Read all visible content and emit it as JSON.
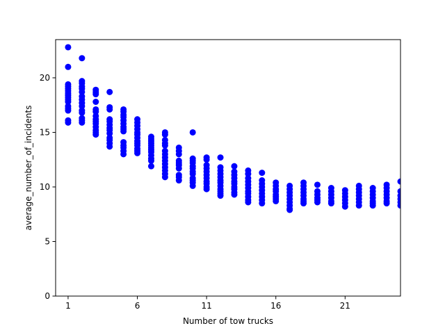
{
  "chart_data": {
    "type": "scatter",
    "title": "",
    "xlabel": "Number of tow trucks",
    "ylabel": "average_number_of_incidents",
    "xlim": [
      0.1,
      25
    ],
    "ylim": [
      0,
      23.5
    ],
    "xticks": [
      1,
      6,
      11,
      16,
      21
    ],
    "yticks": [
      0,
      5,
      10,
      15,
      20
    ],
    "grid": false,
    "marker_color": "#0000ff",
    "points_by_x": {
      "1": [
        22.8,
        21.0,
        19.4,
        19.2,
        19.0,
        18.8,
        18.6,
        18.4,
        18.2,
        18.0,
        17.8,
        17.4,
        17.2,
        17.0,
        16.1,
        15.9
      ],
      "2": [
        21.8,
        19.7,
        19.5,
        19.2,
        19.0,
        18.7,
        18.3,
        18.0,
        17.7,
        17.4,
        17.0,
        16.8,
        16.3,
        16.1,
        15.9
      ],
      "3": [
        18.9,
        18.7,
        18.5,
        17.8,
        17.1,
        16.9,
        16.5,
        16.2,
        16.0,
        15.8,
        15.5,
        15.2,
        15.0,
        14.8
      ],
      "4": [
        18.7,
        17.3,
        17.1,
        16.2,
        16.0,
        15.7,
        15.4,
        15.2,
        14.9,
        14.5,
        14.3,
        14.0,
        13.7
      ],
      "5": [
        17.1,
        16.9,
        16.6,
        16.4,
        16.1,
        15.8,
        15.5,
        15.3,
        15.1,
        14.1,
        13.8,
        13.6,
        13.3,
        13.0
      ],
      "6": [
        16.2,
        15.9,
        15.6,
        15.3,
        15.0,
        14.8,
        14.5,
        14.2,
        14.0,
        13.8,
        13.5,
        13.3,
        13.1
      ],
      "7": [
        14.6,
        14.4,
        14.2,
        14.0,
        13.8,
        13.6,
        13.4,
        13.2,
        12.9,
        12.6,
        12.4,
        11.9
      ],
      "8": [
        15.0,
        14.8,
        14.3,
        14.0,
        13.8,
        13.3,
        13.0,
        12.7,
        12.4,
        12.1,
        11.8,
        11.5,
        11.2,
        10.9
      ],
      "9": [
        13.6,
        13.3,
        13.0,
        12.4,
        12.2,
        12.0,
        11.7,
        11.1,
        10.9,
        10.6
      ],
      "10": [
        15.0,
        12.6,
        12.4,
        12.2,
        11.9,
        11.7,
        11.4,
        11.2,
        10.8,
        10.6,
        10.4,
        10.1
      ],
      "11": [
        12.7,
        12.5,
        12.0,
        11.7,
        11.4,
        11.1,
        10.8,
        10.5,
        10.3,
        10.0,
        9.8
      ],
      "12": [
        12.7,
        11.8,
        11.5,
        11.2,
        10.9,
        10.6,
        10.4,
        10.1,
        9.8,
        9.6,
        9.4,
        9.2
      ],
      "13": [
        11.9,
        11.4,
        11.1,
        10.8,
        10.5,
        10.3,
        10.0,
        9.8,
        9.5,
        9.3
      ],
      "14": [
        11.5,
        11.2,
        10.8,
        10.5,
        10.2,
        9.9,
        9.6,
        9.4,
        9.1,
        8.8,
        8.6
      ],
      "15": [
        11.3,
        10.6,
        10.3,
        10.0,
        9.7,
        9.4,
        9.1,
        8.8,
        8.5
      ],
      "16": [
        10.4,
        10.1,
        9.8,
        9.6,
        9.3,
        9.1,
        8.9,
        8.7
      ],
      "17": [
        10.1,
        9.8,
        9.5,
        9.2,
        8.9,
        8.6,
        8.3,
        8.0,
        7.9
      ],
      "18": [
        10.4,
        10.1,
        9.8,
        9.5,
        9.2,
        8.9,
        8.7,
        8.5
      ],
      "19": [
        10.2,
        9.6,
        9.3,
        9.0,
        8.8,
        8.6
      ],
      "20": [
        9.9,
        9.6,
        9.3,
        9.0,
        8.7,
        8.5
      ],
      "21": [
        9.7,
        9.4,
        9.1,
        8.8,
        8.5,
        8.2
      ],
      "22": [
        10.1,
        9.8,
        9.5,
        9.2,
        8.9,
        8.6,
        8.3
      ],
      "23": [
        9.9,
        9.6,
        9.3,
        9.0,
        8.7,
        8.5,
        8.3
      ],
      "24": [
        10.2,
        9.9,
        9.6,
        9.3,
        9.0,
        8.7,
        8.5
      ],
      "25": [
        10.5,
        9.6,
        9.2,
        8.9,
        8.6,
        8.3
      ]
    }
  }
}
